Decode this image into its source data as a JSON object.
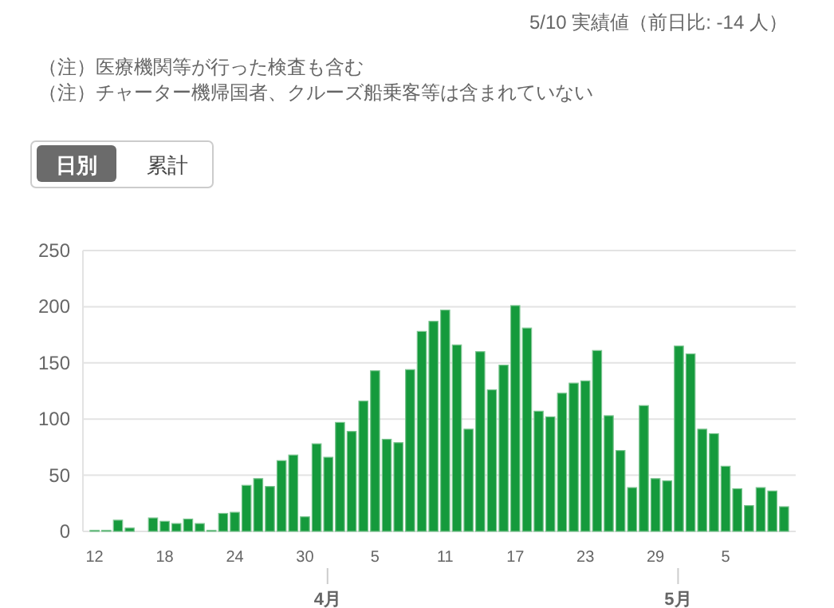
{
  "chart_data": {
    "type": "bar",
    "subtitle": "5/10 実績値（前日比: -14 人）",
    "annotations": [
      "（注）医療機関等が行った検査も含む",
      "（注）チャーター機帰国者、クルーズ船乗客等は含まれていない",
      "日別",
      "累計",
      {
        "text": "4月",
        "x": "--04-01"
      },
      {
        "text": "5月",
        "x": "--05-01"
      }
    ],
    "x": [
      "--03-12",
      "--03-13",
      "--03-14",
      "--03-15",
      "--03-16",
      "--03-17",
      "--03-18",
      "--03-19",
      "--03-20",
      "--03-21",
      "--03-22",
      "--03-23",
      "--03-24",
      "--03-25",
      "--03-26",
      "--03-27",
      "--03-28",
      "--03-29",
      "--03-30",
      "--03-31",
      "--04-01",
      "--04-02",
      "--04-03",
      "--04-04",
      "--04-05",
      "--04-06",
      "--04-07",
      "--04-08",
      "--04-09",
      "--04-10",
      "--04-11",
      "--04-12",
      "--04-13",
      "--04-14",
      "--04-15",
      "--04-16",
      "--04-17",
      "--04-18",
      "--04-19",
      "--04-20",
      "--04-21",
      "--04-22",
      "--04-23",
      "--04-24",
      "--04-25",
      "--04-26",
      "--04-27",
      "--04-28",
      "--04-29",
      "--04-30",
      "--05-01",
      "--05-02",
      "--05-03",
      "--05-04",
      "--05-05",
      "--05-06",
      "--05-07",
      "--05-08",
      "--05-09",
      "--05-10"
    ],
    "values": [
      1,
      1,
      10,
      3,
      0,
      12,
      9,
      7,
      11,
      7,
      1,
      16,
      17,
      41,
      47,
      40,
      63,
      68,
      13,
      78,
      66,
      97,
      89,
      116,
      143,
      82,
      79,
      144,
      178,
      187,
      197,
      166,
      91,
      160,
      126,
      148,
      201,
      181,
      107,
      102,
      123,
      132,
      134,
      161,
      103,
      72,
      39,
      112,
      47,
      45,
      165,
      158,
      91,
      87,
      58,
      38,
      23,
      39,
      36,
      22
    ],
    "color": "#159a3c",
    "xlim": [
      "--03-11",
      "--05-11"
    ],
    "xticks": [
      {
        "value": "--03-12",
        "label": "12"
      },
      {
        "value": "--03-18",
        "label": "18"
      },
      {
        "value": "--03-24",
        "label": "24"
      },
      {
        "value": "--03-30",
        "label": "30"
      },
      {
        "value": "--04-05",
        "label": "5"
      },
      {
        "value": "--04-11",
        "label": "11"
      },
      {
        "value": "--04-17",
        "label": "17"
      },
      {
        "value": "--04-23",
        "label": "23"
      },
      {
        "value": "--04-29",
        "label": "29"
      },
      {
        "value": "--05-05",
        "label": "5"
      }
    ],
    "ylim": [
      0,
      250
    ],
    "yticks": [
      0,
      50,
      100,
      150,
      200,
      250
    ],
    "grid": "y"
  }
}
